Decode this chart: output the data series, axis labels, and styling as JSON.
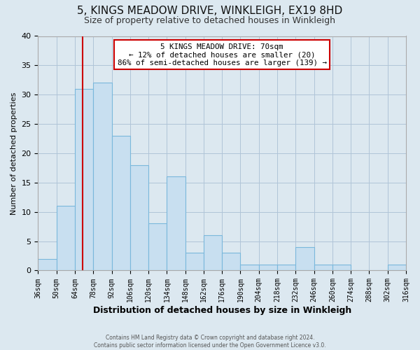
{
  "title": "5, KINGS MEADOW DRIVE, WINKLEIGH, EX19 8HD",
  "subtitle": "Size of property relative to detached houses in Winkleigh",
  "xlabel": "Distribution of detached houses by size in Winkleigh",
  "ylabel": "Number of detached properties",
  "bin_edges": [
    36,
    50,
    64,
    78,
    92,
    106,
    120,
    134,
    148,
    162,
    176,
    190,
    204,
    218,
    232,
    246,
    260,
    274,
    288,
    302,
    316
  ],
  "bar_heights": [
    2,
    11,
    31,
    32,
    23,
    18,
    8,
    16,
    3,
    6,
    3,
    1,
    1,
    1,
    4,
    1,
    1,
    0,
    0,
    1
  ],
  "bar_color": "#c8dff0",
  "bar_edge_color": "#7ab8dc",
  "vline_x": 70,
  "vline_color": "#cc0000",
  "ylim": [
    0,
    40
  ],
  "xlim": [
    36,
    316
  ],
  "annotation_line1": "5 KINGS MEADOW DRIVE: 70sqm",
  "annotation_line2": "← 12% of detached houses are smaller (20)",
  "annotation_line3": "86% of semi-detached houses are larger (139) →",
  "annotation_box_color": "#ffffff",
  "annotation_box_edge": "#cc0000",
  "footer_line1": "Contains HM Land Registry data © Crown copyright and database right 2024.",
  "footer_line2": "Contains public sector information licensed under the Open Government Licence v3.0.",
  "figure_bg_color": "#dce8f0",
  "plot_bg_color": "#dce8f0",
  "title_fontsize": 11,
  "subtitle_fontsize": 9,
  "xlabel_fontsize": 9,
  "ylabel_fontsize": 8,
  "tick_fontsize": 7,
  "yticks": [
    0,
    5,
    10,
    15,
    20,
    25,
    30,
    35,
    40
  ],
  "tick_labels": [
    "36sqm",
    "50sqm",
    "64sqm",
    "78sqm",
    "92sqm",
    "106sqm",
    "120sqm",
    "134sqm",
    "148sqm",
    "162sqm",
    "176sqm",
    "190sqm",
    "204sqm",
    "218sqm",
    "232sqm",
    "246sqm",
    "260sqm",
    "274sqm",
    "288sqm",
    "302sqm",
    "316sqm"
  ]
}
